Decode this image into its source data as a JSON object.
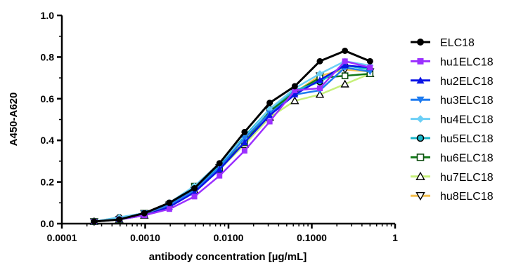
{
  "chart_data": {
    "type": "line",
    "title": "",
    "xlabel": "antibody concentration [µg/mL]",
    "ylabel": "A450-A620",
    "x_scale": "log",
    "xlim": [
      0.0001,
      1
    ],
    "ylim": [
      0,
      1.0
    ],
    "x_ticks": [
      0.0001,
      0.001,
      0.01,
      0.1,
      1
    ],
    "x_tick_labels": [
      "0.0001",
      "0.0010",
      "0.0100",
      "0.1000",
      "1"
    ],
    "y_ticks": [
      0,
      0.2,
      0.4,
      0.6,
      0.8,
      1.0
    ],
    "y_tick_labels": [
      "0.0",
      "0.2",
      "0.4",
      "0.6",
      "0.8",
      "1.0"
    ],
    "grid": false,
    "legend_position": "right",
    "x": [
      0.000244,
      0.000488,
      0.000977,
      0.00195,
      0.0039,
      0.0078,
      0.0156,
      0.03125,
      0.0625,
      0.125,
      0.25,
      0.5
    ],
    "series": [
      {
        "name": "ELC18",
        "color": "#000000",
        "marker": "circle",
        "values": [
          0.01,
          0.02,
          0.05,
          0.1,
          0.17,
          0.29,
          0.44,
          0.58,
          0.66,
          0.78,
          0.83,
          0.78
        ]
      },
      {
        "name": "hu1ELC18",
        "color": "#9b30ff",
        "marker": "square",
        "values": [
          0.01,
          0.02,
          0.04,
          0.07,
          0.13,
          0.23,
          0.35,
          0.49,
          0.64,
          0.65,
          0.78,
          0.75
        ]
      },
      {
        "name": "hu2ELC18",
        "color": "#0a14e6",
        "marker": "triangle-up",
        "values": [
          0.01,
          0.02,
          0.04,
          0.08,
          0.15,
          0.26,
          0.39,
          0.52,
          0.62,
          0.69,
          0.76,
          0.75
        ]
      },
      {
        "name": "hu3ELC18",
        "color": "#1e7bf0",
        "marker": "triangle-down",
        "values": [
          0.01,
          0.02,
          0.05,
          0.09,
          0.16,
          0.27,
          0.41,
          0.53,
          0.62,
          0.64,
          0.75,
          0.73
        ]
      },
      {
        "name": "hu4ELC18",
        "color": "#6ccff6",
        "marker": "diamond",
        "values": [
          0.01,
          0.03,
          0.05,
          0.1,
          0.18,
          0.29,
          0.41,
          0.55,
          0.65,
          0.72,
          0.78,
          0.76
        ]
      },
      {
        "name": "hu5ELC18",
        "color": "#1ab5c8",
        "marker": "circle-outline",
        "values": [
          0.01,
          0.03,
          0.05,
          0.1,
          0.17,
          0.28,
          0.42,
          0.55,
          0.64,
          0.68,
          0.76,
          0.74
        ]
      },
      {
        "name": "hu6ELC18",
        "color": "#127a18",
        "marker": "square-open",
        "values": [
          0.01,
          0.02,
          0.05,
          0.09,
          0.18,
          0.27,
          0.39,
          0.54,
          0.63,
          0.7,
          0.71,
          0.72
        ]
      },
      {
        "name": "hu7ELC18",
        "color": "#c6f07a",
        "marker": "triangle-up-open",
        "values": [
          0.01,
          0.02,
          0.04,
          0.09,
          0.16,
          0.26,
          0.38,
          0.51,
          0.59,
          0.62,
          0.67,
          0.72
        ]
      },
      {
        "name": "hu8ELC18",
        "color": "#f5c04f",
        "marker": "triangle-down-open",
        "values": [
          0.01,
          0.02,
          0.05,
          0.09,
          0.16,
          0.27,
          0.41,
          0.54,
          0.63,
          0.71,
          0.74,
          0.73
        ]
      }
    ]
  }
}
